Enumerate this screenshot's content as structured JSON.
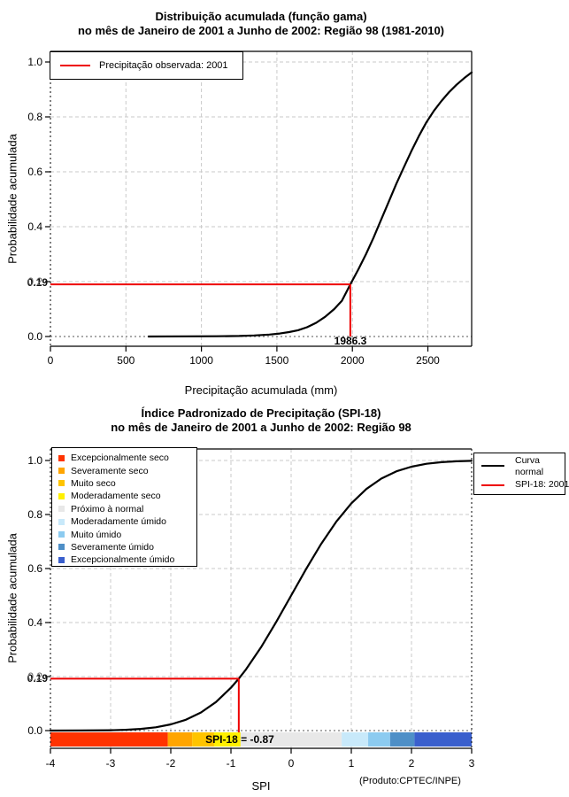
{
  "chart_data": [
    {
      "type": "line",
      "title": "Distribuição acumulada (função gama)",
      "subtitle": "no mês de Janeiro de 2001 a Junho de 2002: Região 98 (1981-2010)",
      "xlabel": "Precipitação acumulada (mm)",
      "ylabel": "Probabilidade acumulada",
      "xlim": [
        0,
        2790
      ],
      "ylim": [
        0,
        1
      ],
      "grid": true,
      "x_ticks": [
        0,
        500,
        1000,
        1500,
        2000,
        2500
      ],
      "x_tick_labels": [
        "0",
        "500",
        "1000",
        "1500",
        "2000",
        "2500"
      ],
      "y_ticks": [
        0,
        0.2,
        0.4,
        0.6,
        0.8,
        1.0
      ],
      "y_tick_labels": [
        "0.0",
        "0.2",
        "0.4",
        "0.6",
        "0.8",
        "1.0"
      ],
      "legend": {
        "position": "top-left",
        "items": [
          {
            "label": "Precipitação observada: 2001",
            "color": "#EE0000"
          }
        ]
      },
      "series": [
        {
          "name": "Distribuição acumulada (função gama)",
          "color": "#000000",
          "points": [
            [
              650,
              0
            ],
            [
              900,
              0.0005
            ],
            [
              1100,
              0.001
            ],
            [
              1250,
              0.002
            ],
            [
              1350,
              0.004
            ],
            [
              1450,
              0.007
            ],
            [
              1520,
              0.011
            ],
            [
              1580,
              0.016
            ],
            [
              1640,
              0.023
            ],
            [
              1700,
              0.034
            ],
            [
              1760,
              0.05
            ],
            [
              1820,
              0.072
            ],
            [
              1880,
              0.1
            ],
            [
              1930,
              0.13
            ],
            [
              1986.3,
              0.19
            ],
            [
              2040,
              0.245
            ],
            [
              2090,
              0.3
            ],
            [
              2140,
              0.36
            ],
            [
              2190,
              0.425
            ],
            [
              2240,
              0.49
            ],
            [
              2290,
              0.555
            ],
            [
              2340,
              0.615
            ],
            [
              2390,
              0.675
            ],
            [
              2440,
              0.73
            ],
            [
              2490,
              0.78
            ],
            [
              2540,
              0.822
            ],
            [
              2590,
              0.858
            ],
            [
              2640,
              0.89
            ],
            [
              2690,
              0.917
            ],
            [
              2740,
              0.941
            ],
            [
              2790,
              0.962
            ]
          ]
        }
      ],
      "annotation": {
        "x_value": 1986.3,
        "x_value_label": "1986.3",
        "probability": 0.19,
        "probability_label": "0.19",
        "overlapped_tick_label": "0.2",
        "color": "#EE0000"
      }
    },
    {
      "type": "line",
      "title": "Índice Padronizado de Precipitação (SPI-18)",
      "subtitle": "no mês de Janeiro de 2001 a Junho de 2002: Região 98",
      "xlabel": "SPI",
      "ylabel": "Probabilidade acumulada",
      "footer": "(Produto:CPTEC/INPE)",
      "xlim": [
        -4,
        3
      ],
      "ylim": [
        0,
        1
      ],
      "grid": true,
      "x_ticks": [
        -4,
        -3,
        -2,
        -1,
        0,
        1,
        2,
        3
      ],
      "x_tick_labels": [
        "-4",
        "-3",
        "-2",
        "-1",
        "0",
        "1",
        "2",
        "3"
      ],
      "y_ticks": [
        0,
        0.2,
        0.4,
        0.6,
        0.8,
        1.0
      ],
      "y_tick_labels": [
        "0.0",
        "0.2",
        "0.4",
        "0.6",
        "0.8",
        "1.0"
      ],
      "series": [
        {
          "name": "Curva normal",
          "color": "#000000",
          "points": [
            [
              -4,
              3e-05
            ],
            [
              -3.5,
              0.0002
            ],
            [
              -3,
              0.0013
            ],
            [
              -2.75,
              0.003
            ],
            [
              -2.5,
              0.0062
            ],
            [
              -2.25,
              0.0122
            ],
            [
              -2,
              0.0228
            ],
            [
              -1.75,
              0.0401
            ],
            [
              -1.5,
              0.0668
            ],
            [
              -1.25,
              0.1056
            ],
            [
              -1,
              0.1587
            ],
            [
              -0.87,
              0.1922
            ],
            [
              -0.75,
              0.2266
            ],
            [
              -0.5,
              0.3085
            ],
            [
              -0.25,
              0.4013
            ],
            [
              0,
              0.5
            ],
            [
              0.25,
              0.5987
            ],
            [
              0.5,
              0.6915
            ],
            [
              0.75,
              0.7734
            ],
            [
              1,
              0.8413
            ],
            [
              1.25,
              0.8944
            ],
            [
              1.5,
              0.9332
            ],
            [
              1.75,
              0.9599
            ],
            [
              2,
              0.9772
            ],
            [
              2.25,
              0.9878
            ],
            [
              2.5,
              0.9938
            ],
            [
              2.75,
              0.997
            ],
            [
              3,
              0.9987
            ]
          ]
        }
      ],
      "category_legend": {
        "items": [
          {
            "label": "Excepcionalmente seco",
            "color": "#FF3300",
            "range": [
              -4,
              -2.05
            ]
          },
          {
            "label": "Severamente seco",
            "color": "#FFA500",
            "range": [
              -2.05,
              -1.645
            ]
          },
          {
            "label": "Muito seco",
            "color": "#FFC400",
            "range": [
              -1.645,
              -1.28
            ]
          },
          {
            "label": "Moderadamente seco",
            "color": "#FFF000",
            "range": [
              -1.28,
              -0.84
            ]
          },
          {
            "label": "Próximo à normal",
            "color": "#E8E8E8",
            "range": [
              -0.84,
              0.84
            ]
          },
          {
            "label": "Moderadamente úmido",
            "color": "#C8E9FA",
            "range": [
              0.84,
              1.28
            ]
          },
          {
            "label": "Muito úmido",
            "color": "#8CCBF0",
            "range": [
              1.28,
              1.645
            ]
          },
          {
            "label": "Severamente úmido",
            "color": "#4E8FC7",
            "range": [
              1.645,
              2.05
            ]
          },
          {
            "label": "Excepcionalmente úmido",
            "color": "#3A5FCD",
            "range": [
              2.05,
              3
            ]
          }
        ]
      },
      "line_legend": {
        "items": [
          {
            "label_lines": [
              "Curva",
              "normal"
            ],
            "color": "#000000"
          },
          {
            "label_lines": [
              "SPI-18: 2001"
            ],
            "color": "#EE0000"
          }
        ]
      },
      "colorbar": {
        "segments": [
          {
            "from": -4,
            "to": -2.05,
            "color": "#FF3300"
          },
          {
            "from": -2.05,
            "to": -1.645,
            "color": "#FFA500"
          },
          {
            "from": -1.645,
            "to": -1.28,
            "color": "#FFC400"
          },
          {
            "from": -1.28,
            "to": -0.84,
            "color": "#FFF000"
          },
          {
            "from": -0.84,
            "to": 0.84,
            "color": "#E8E8E8"
          },
          {
            "from": 0.84,
            "to": 1.28,
            "color": "#C8E9FA"
          },
          {
            "from": 1.28,
            "to": 1.645,
            "color": "#8CCBF0"
          },
          {
            "from": 1.645,
            "to": 2.05,
            "color": "#4E8FC7"
          },
          {
            "from": 2.05,
            "to": 3,
            "color": "#3A5FCD"
          }
        ]
      },
      "annotation": {
        "x_value": -0.87,
        "label": "SPI-18 = -0.87",
        "probability": 0.1922,
        "probability_label": "0.19",
        "overlapped_tick_label": "0.2",
        "color": "#EE0000"
      }
    }
  ]
}
